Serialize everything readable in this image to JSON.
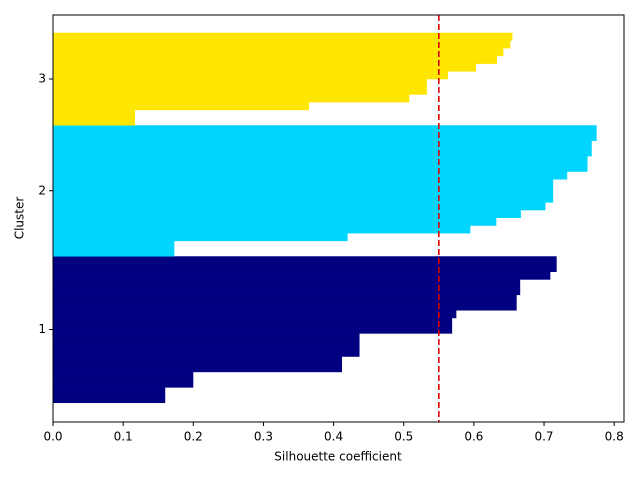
{
  "chart_data": {
    "type": "silhouette",
    "xlabel": "Silhouette coefficient",
    "ylabel": "Cluster",
    "series": [
      {
        "name": "1",
        "color": "#000080",
        "values": [
          0.16,
          0.16,
          0.2,
          0.2,
          0.412,
          0.412,
          0.437,
          0.437,
          0.437,
          0.569,
          0.569,
          0.575,
          0.661,
          0.661,
          0.666,
          0.666,
          0.709,
          0.718,
          0.718
        ]
      },
      {
        "name": "2",
        "color": "#00d5ff",
        "values": [
          0.173,
          0.173,
          0.42,
          0.595,
          0.632,
          0.667,
          0.702,
          0.713,
          0.713,
          0.713,
          0.733,
          0.762,
          0.762,
          0.768,
          0.768,
          0.775,
          0.775
        ]
      },
      {
        "name": "3",
        "color": "#ffe600",
        "values": [
          0.117,
          0.117,
          0.365,
          0.508,
          0.533,
          0.533,
          0.563,
          0.603,
          0.633,
          0.642,
          0.652,
          0.655
        ]
      }
    ],
    "reference_line": {
      "value": 0.55,
      "color": "#e00000"
    },
    "xlim": [
      0,
      0.814
    ],
    "xticks": [
      {
        "value": 0,
        "label": "0.0"
      },
      0.1,
      0.2,
      0.3,
      0.4,
      0.5,
      0.6,
      0.7,
      0.8
    ],
    "ylim": [
      -2.5,
      50.3
    ]
  }
}
